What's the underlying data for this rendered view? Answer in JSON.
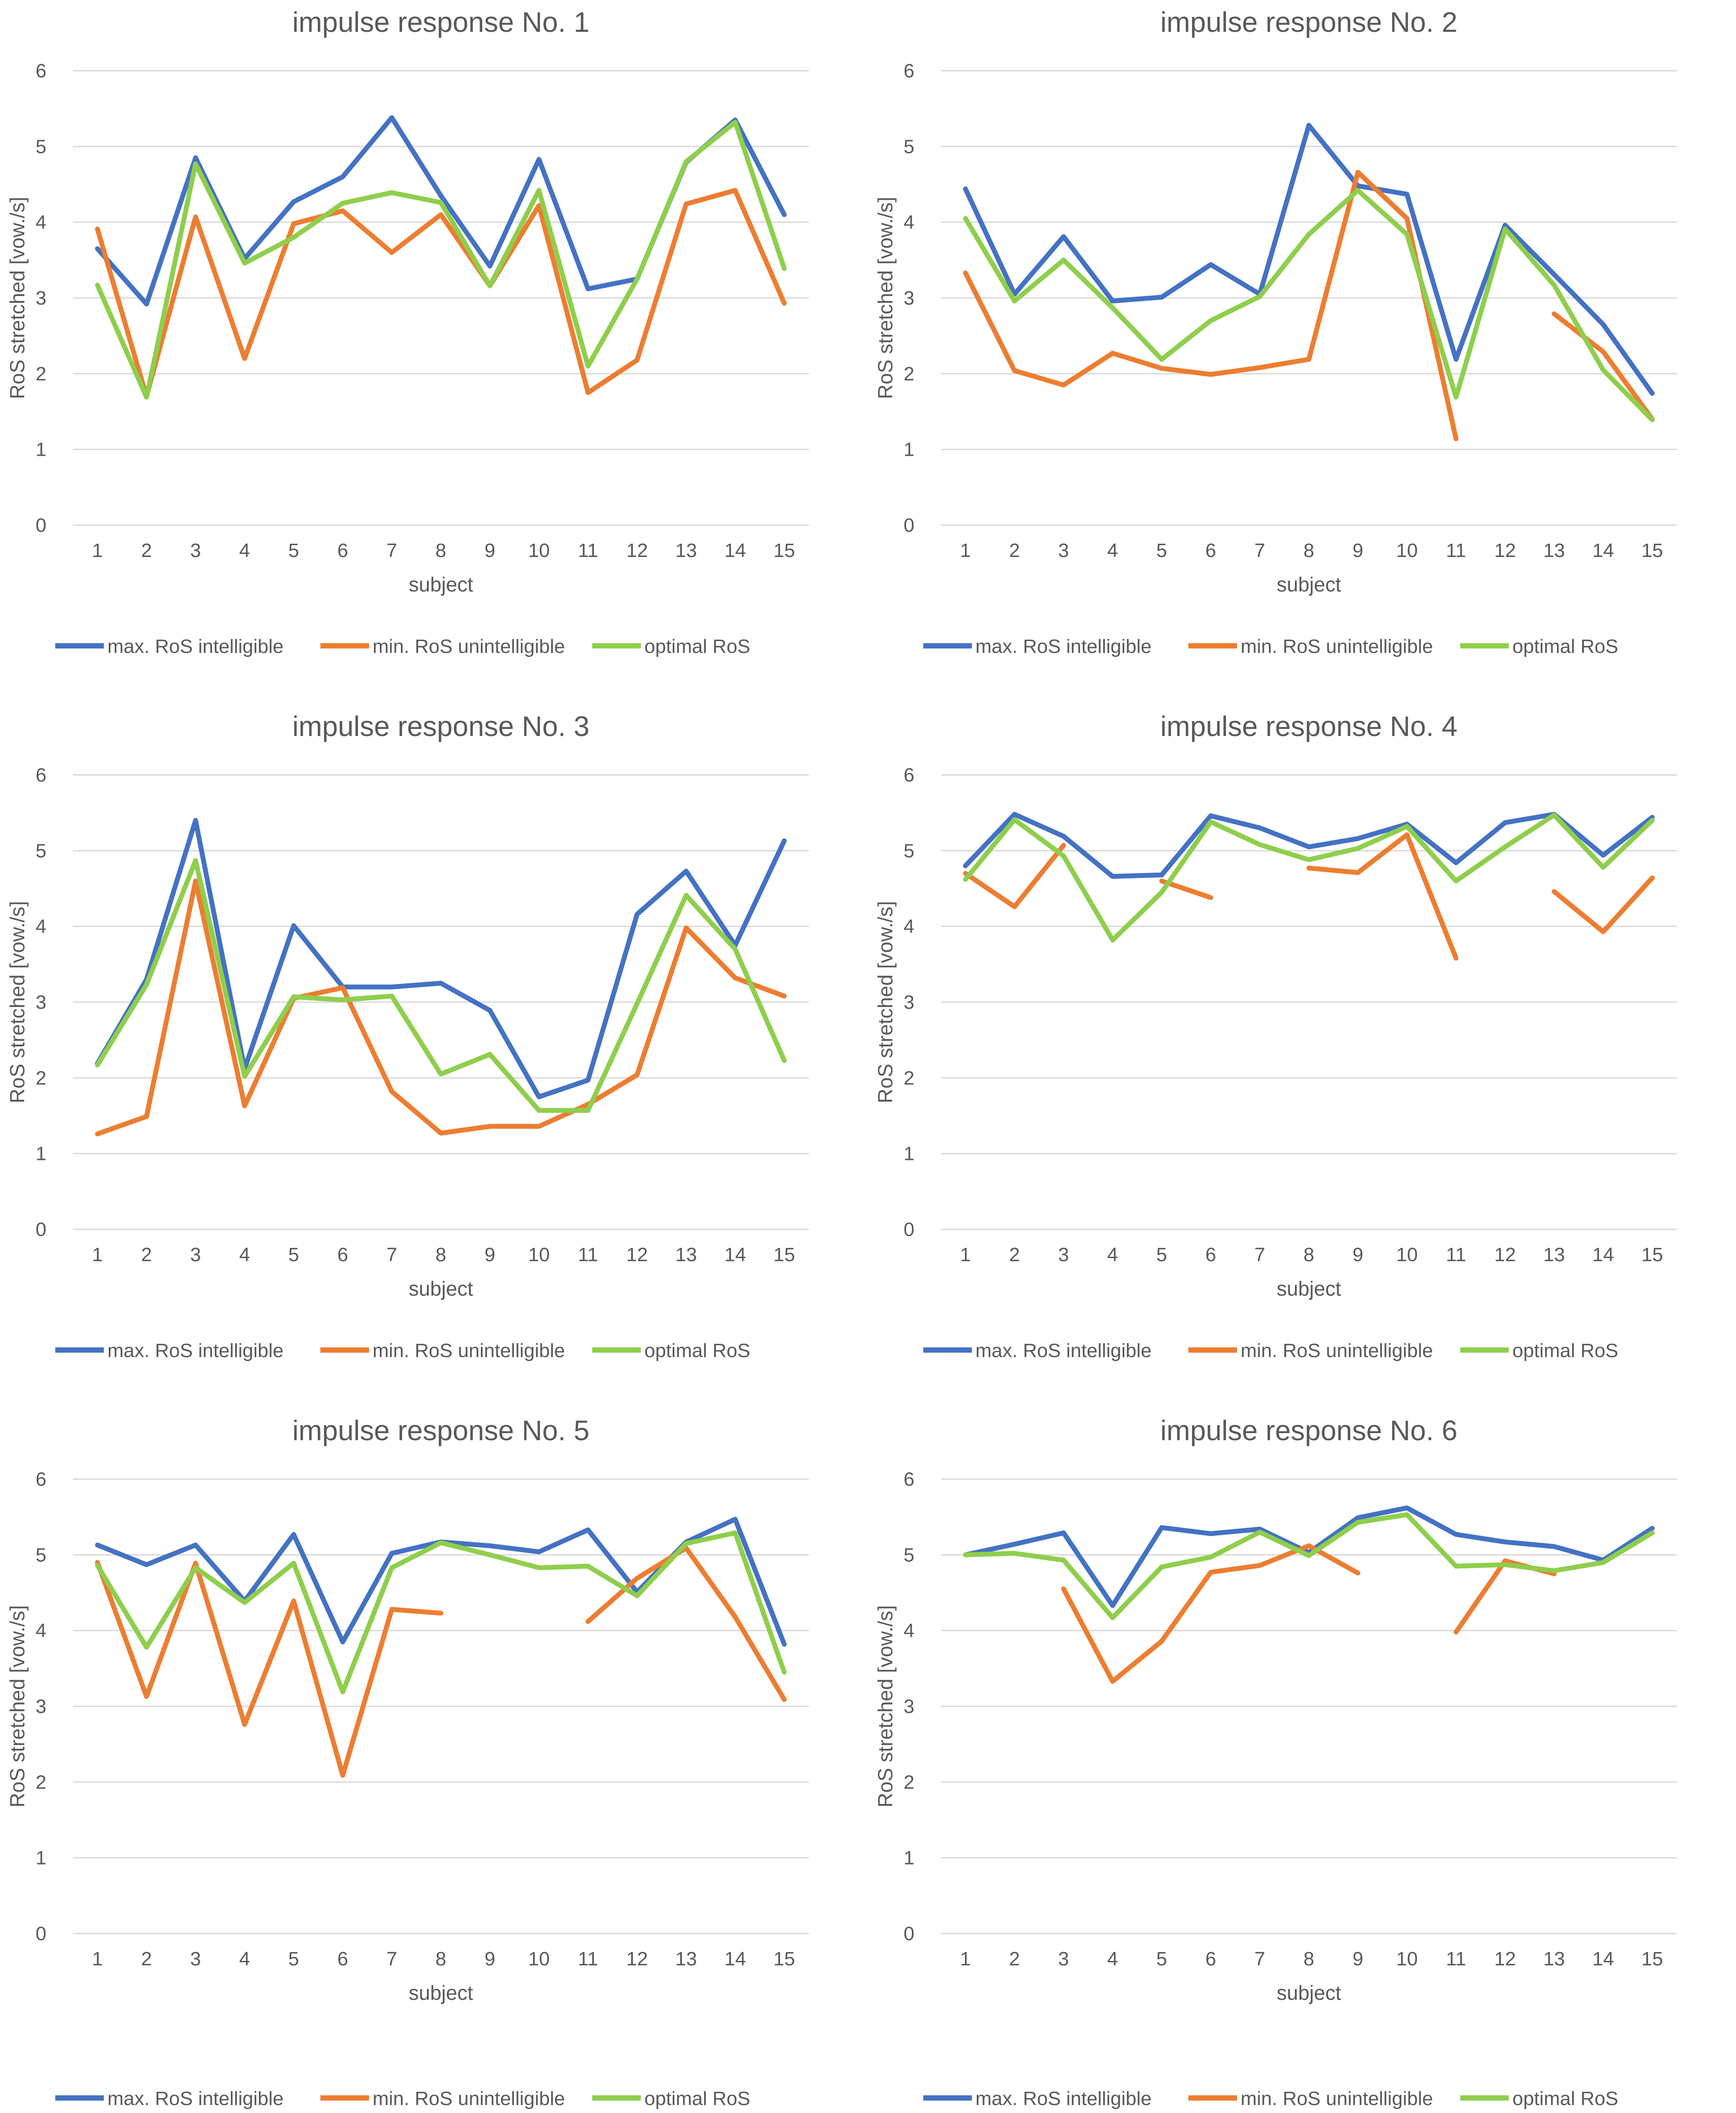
{
  "colors": {
    "max": "#4472c4",
    "min": "#ed7d31",
    "opt": "#8fce4c"
  },
  "chart_data": [
    {
      "type": "line",
      "title": "impulse response No. 1",
      "xlabel": "subject",
      "ylabel": "RoS stretched [vow./s]",
      "ylim": [
        0,
        6
      ],
      "yticks": [
        "0",
        "1",
        "2",
        "3",
        "4",
        "5",
        "6"
      ],
      "categories": [
        "1",
        "2",
        "3",
        "4",
        "5",
        "6",
        "7",
        "8",
        "9",
        "10",
        "11",
        "12",
        "13",
        "14",
        "15"
      ],
      "series": [
        {
          "name": "max. RoS intelligible",
          "color": "#4472c4",
          "values": [
            3.65,
            2.92,
            4.85,
            3.52,
            4.27,
            4.6,
            5.38,
            4.35,
            3.42,
            4.83,
            3.12,
            3.25,
            4.79,
            5.35,
            4.1
          ]
        },
        {
          "name": "min. RoS unintelligible",
          "color": "#ed7d31",
          "values": [
            3.91,
            1.7,
            4.07,
            2.2,
            3.98,
            4.15,
            3.6,
            4.1,
            3.16,
            4.22,
            1.75,
            2.18,
            4.24,
            4.42,
            2.93
          ]
        },
        {
          "name": "optimal RoS",
          "color": "#8fce4c",
          "values": [
            3.17,
            1.69,
            4.77,
            3.46,
            3.8,
            4.25,
            4.39,
            4.26,
            3.16,
            4.42,
            2.1,
            3.25,
            4.8,
            5.32,
            3.39
          ]
        }
      ]
    },
    {
      "type": "line",
      "title": "impulse response No. 2",
      "xlabel": "subject",
      "ylabel": "RoS stretched [vow./s]",
      "ylim": [
        0,
        6
      ],
      "yticks": [
        "0",
        "1",
        "2",
        "3",
        "4",
        "5",
        "6"
      ],
      "categories": [
        "1",
        "2",
        "3",
        "4",
        "5",
        "6",
        "7",
        "8",
        "9",
        "10",
        "11",
        "12",
        "13",
        "14",
        "15"
      ],
      "series": [
        {
          "name": "max. RoS intelligible",
          "color": "#4472c4",
          "values": [
            4.44,
            3.05,
            3.81,
            2.96,
            3.01,
            3.44,
            3.05,
            5.28,
            4.48,
            4.37,
            2.19,
            3.96,
            3.31,
            2.65,
            1.74
          ]
        },
        {
          "name": "min. RoS unintelligible",
          "color": "#ed7d31",
          "values": [
            3.33,
            2.04,
            1.85,
            2.27,
            2.07,
            1.99,
            2.08,
            2.19,
            4.66,
            4.05,
            1.14,
            null,
            2.79,
            2.29,
            1.4
          ]
        },
        {
          "name": "optimal RoS",
          "color": "#8fce4c",
          "values": [
            4.05,
            2.96,
            3.5,
            2.87,
            2.19,
            2.7,
            3.02,
            3.84,
            4.42,
            3.84,
            1.69,
            3.91,
            3.17,
            2.05,
            1.39
          ]
        }
      ]
    },
    {
      "type": "line",
      "title": "impulse response No. 3",
      "xlabel": "subject",
      "ylabel": "RoS stretched [vow./s]",
      "ylim": [
        0,
        6
      ],
      "yticks": [
        "0",
        "1",
        "2",
        "3",
        "4",
        "5",
        "6"
      ],
      "categories": [
        "1",
        "2",
        "3",
        "4",
        "5",
        "6",
        "7",
        "8",
        "9",
        "10",
        "11",
        "12",
        "13",
        "14",
        "15"
      ],
      "series": [
        {
          "name": "max. RoS intelligible",
          "color": "#4472c4",
          "values": [
            2.19,
            3.3,
            5.4,
            2.12,
            4.01,
            3.2,
            3.2,
            3.25,
            2.89,
            1.75,
            1.97,
            4.16,
            4.73,
            3.75,
            5.13
          ]
        },
        {
          "name": "min. RoS unintelligible",
          "color": "#ed7d31",
          "values": [
            1.26,
            1.49,
            4.6,
            1.63,
            3.05,
            3.19,
            1.82,
            1.27,
            1.36,
            1.36,
            1.65,
            2.04,
            3.98,
            3.32,
            3.08
          ]
        },
        {
          "name": "optimal RoS",
          "color": "#8fce4c",
          "values": [
            2.17,
            3.23,
            4.87,
            2.02,
            3.07,
            3.03,
            3.08,
            2.05,
            2.31,
            1.57,
            1.57,
            2.98,
            4.41,
            3.7,
            2.23
          ]
        }
      ]
    },
    {
      "type": "line",
      "title": "impulse response No. 4",
      "xlabel": "subject",
      "ylabel": "RoS stretched [vow./s]",
      "ylim": [
        0,
        6
      ],
      "yticks": [
        "0",
        "1",
        "2",
        "3",
        "4",
        "5",
        "6"
      ],
      "categories": [
        "1",
        "2",
        "3",
        "4",
        "5",
        "6",
        "7",
        "8",
        "9",
        "10",
        "11",
        "12",
        "13",
        "14",
        "15"
      ],
      "series": [
        {
          "name": "max. RoS intelligible",
          "color": "#4472c4",
          "values": [
            4.8,
            5.48,
            5.19,
            4.66,
            4.68,
            5.46,
            5.3,
            5.05,
            5.16,
            5.35,
            4.84,
            5.37,
            5.48,
            4.94,
            5.44
          ]
        },
        {
          "name": "min. RoS unintelligible",
          "color": "#ed7d31",
          "values": [
            4.7,
            4.26,
            5.07,
            null,
            4.6,
            4.38,
            null,
            4.77,
            4.71,
            5.21,
            3.58,
            null,
            4.46,
            3.93,
            4.64
          ]
        },
        {
          "name": "optimal RoS",
          "color": "#8fce4c",
          "values": [
            4.62,
            5.41,
            4.93,
            3.82,
            4.45,
            5.38,
            5.08,
            4.88,
            5.03,
            5.32,
            4.6,
            5.05,
            5.47,
            4.78,
            5.4
          ]
        }
      ]
    },
    {
      "type": "line",
      "title": "impulse response No. 5",
      "xlabel": "subject",
      "ylabel": "RoS stretched [vow./s]",
      "ylim": [
        0,
        6
      ],
      "yticks": [
        "0",
        "1",
        "2",
        "3",
        "4",
        "5",
        "6"
      ],
      "categories": [
        "1",
        "2",
        "3",
        "4",
        "5",
        "6",
        "7",
        "8",
        "9",
        "10",
        "11",
        "12",
        "13",
        "14",
        "15"
      ],
      "series": [
        {
          "name": "max. RoS intelligible",
          "color": "#4472c4",
          "values": [
            5.13,
            4.87,
            5.13,
            4.39,
            5.27,
            3.85,
            5.02,
            5.17,
            5.12,
            5.04,
            5.33,
            4.51,
            5.17,
            5.47,
            3.82
          ]
        },
        {
          "name": "min. RoS unintelligible",
          "color": "#ed7d31",
          "values": [
            4.9,
            3.13,
            4.89,
            2.76,
            4.39,
            2.09,
            4.28,
            4.23,
            null,
            null,
            4.12,
            4.69,
            5.09,
            4.18,
            3.09
          ]
        },
        {
          "name": "optimal RoS",
          "color": "#8fce4c",
          "values": [
            4.86,
            3.78,
            4.83,
            4.37,
            4.89,
            3.19,
            4.83,
            5.16,
            5.0,
            4.83,
            4.85,
            4.46,
            5.15,
            5.29,
            3.45
          ]
        }
      ]
    },
    {
      "type": "line",
      "title": "impulse response No. 6",
      "xlabel": "subject",
      "ylabel": "RoS stretched [vow./s]",
      "ylim": [
        0,
        6
      ],
      "yticks": [
        "0",
        "1",
        "2",
        "3",
        "4",
        "5",
        "6"
      ],
      "categories": [
        "1",
        "2",
        "3",
        "4",
        "5",
        "6",
        "7",
        "8",
        "9",
        "10",
        "11",
        "12",
        "13",
        "14",
        "15"
      ],
      "series": [
        {
          "name": "max. RoS intelligible",
          "color": "#4472c4",
          "values": [
            5.0,
            5.14,
            5.29,
            4.33,
            5.36,
            5.28,
            5.34,
            5.03,
            5.49,
            5.62,
            5.27,
            5.17,
            5.11,
            4.93,
            5.35
          ]
        },
        {
          "name": "min. RoS unintelligible",
          "color": "#ed7d31",
          "values": [
            null,
            null,
            4.55,
            3.33,
            3.86,
            4.77,
            4.86,
            5.12,
            4.76,
            null,
            3.98,
            4.92,
            4.75,
            null,
            null
          ]
        },
        {
          "name": "optimal RoS",
          "color": "#8fce4c",
          "values": [
            5.0,
            5.02,
            4.93,
            4.17,
            4.84,
            4.97,
            5.3,
            4.99,
            5.43,
            5.53,
            4.85,
            4.87,
            4.79,
            4.9,
            5.29
          ]
        }
      ]
    }
  ]
}
